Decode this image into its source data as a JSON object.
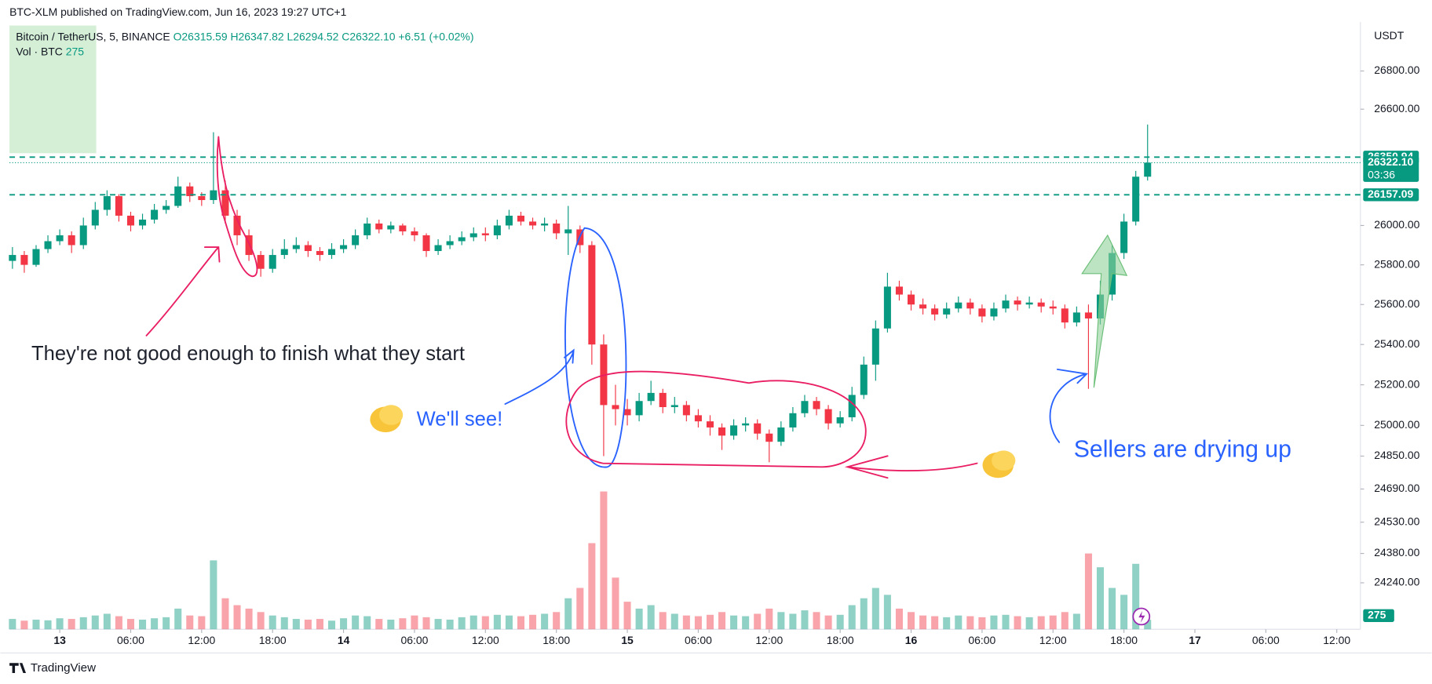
{
  "header": {
    "published": "BTC-XLM published on TradingView.com, Jun 16, 2023 19:27 UTC+1"
  },
  "footer": "TradingView",
  "chart_data": {
    "type": "candlestick",
    "legend": {
      "symbol": "Bitcoin / TetherUS, 5, BINANCE",
      "ohlc": [
        "O26315.59",
        "H26347.82",
        "L26294.52",
        "C26322.10"
      ],
      "change": "+6.51 (+0.02%)"
    },
    "unit": "USDT",
    "up_color": "#089981",
    "down_color": "#f23645",
    "log_scale": true,
    "grid": false,
    "x": [
      "2023-06-12T20:00",
      "2023-06-12T21:00",
      "2023-06-12T22:00",
      "2023-06-12T23:00",
      "2023-06-13T00:00",
      "2023-06-13T01:00",
      "2023-06-13T02:00",
      "2023-06-13T03:00",
      "2023-06-13T04:00",
      "2023-06-13T05:00",
      "2023-06-13T06:00",
      "2023-06-13T07:00",
      "2023-06-13T08:00",
      "2023-06-13T09:00",
      "2023-06-13T10:00",
      "2023-06-13T11:00",
      "2023-06-13T12:00",
      "2023-06-13T13:00",
      "2023-06-13T14:00",
      "2023-06-13T15:00",
      "2023-06-13T16:00",
      "2023-06-13T17:00",
      "2023-06-13T18:00",
      "2023-06-13T19:00",
      "2023-06-13T20:00",
      "2023-06-13T21:00",
      "2023-06-13T22:00",
      "2023-06-13T23:00",
      "2023-06-14T00:00",
      "2023-06-14T01:00",
      "2023-06-14T02:00",
      "2023-06-14T03:00",
      "2023-06-14T04:00",
      "2023-06-14T05:00",
      "2023-06-14T06:00",
      "2023-06-14T07:00",
      "2023-06-14T08:00",
      "2023-06-14T09:00",
      "2023-06-14T10:00",
      "2023-06-14T11:00",
      "2023-06-14T12:00",
      "2023-06-14T13:00",
      "2023-06-14T14:00",
      "2023-06-14T15:00",
      "2023-06-14T16:00",
      "2023-06-14T17:00",
      "2023-06-14T18:00",
      "2023-06-14T19:00",
      "2023-06-14T20:00",
      "2023-06-14T21:00",
      "2023-06-14T22:00",
      "2023-06-14T23:00",
      "2023-06-15T00:00",
      "2023-06-15T01:00",
      "2023-06-15T02:00",
      "2023-06-15T03:00",
      "2023-06-15T04:00",
      "2023-06-15T05:00",
      "2023-06-15T06:00",
      "2023-06-15T07:00",
      "2023-06-15T08:00",
      "2023-06-15T09:00",
      "2023-06-15T10:00",
      "2023-06-15T11:00",
      "2023-06-15T12:00",
      "2023-06-15T13:00",
      "2023-06-15T14:00",
      "2023-06-15T15:00",
      "2023-06-15T16:00",
      "2023-06-15T17:00",
      "2023-06-15T18:00",
      "2023-06-15T19:00",
      "2023-06-15T20:00",
      "2023-06-15T21:00",
      "2023-06-15T22:00",
      "2023-06-15T23:00",
      "2023-06-16T00:00",
      "2023-06-16T01:00",
      "2023-06-16T02:00",
      "2023-06-16T03:00",
      "2023-06-16T04:00",
      "2023-06-16T05:00",
      "2023-06-16T06:00",
      "2023-06-16T07:00",
      "2023-06-16T08:00",
      "2023-06-16T09:00",
      "2023-06-16T10:00",
      "2023-06-16T11:00",
      "2023-06-16T12:00",
      "2023-06-16T13:00",
      "2023-06-16T14:00",
      "2023-06-16T15:00",
      "2023-06-16T16:00",
      "2023-06-16T17:00",
      "2023-06-16T18:00",
      "2023-06-16T19:00",
      "2023-06-16T20:00"
    ],
    "open": [
      25820,
      25850,
      25800,
      25880,
      25920,
      25950,
      25900,
      26000,
      26080,
      26150,
      26050,
      26000,
      26030,
      26080,
      26100,
      26200,
      26150,
      26130,
      26180,
      26050,
      25950,
      25850,
      25780,
      25850,
      25880,
      25900,
      25870,
      25850,
      25880,
      25900,
      25950,
      26010,
      25980,
      26000,
      25970,
      25950,
      25870,
      25900,
      25920,
      25940,
      25960,
      25950,
      26000,
      26050,
      26020,
      26000,
      26010,
      25960,
      25980,
      25900,
      25400,
      25100,
      25080,
      25050,
      25120,
      25160,
      25090,
      25100,
      25050,
      25020,
      24990,
      24950,
      25000,
      25010,
      24960,
      24920,
      24990,
      25060,
      25120,
      25080,
      25010,
      25040,
      25150,
      25300,
      25480,
      25690,
      25650,
      25600,
      25580,
      25550,
      25580,
      25610,
      25580,
      25540,
      25580,
      25620,
      25600,
      25610,
      25590,
      25580,
      25510,
      25560,
      25530,
      25650,
      25860,
      26020,
      26250
    ],
    "high": [
      25890,
      25870,
      25900,
      25950,
      25980,
      25970,
      26040,
      26120,
      26180,
      26160,
      26070,
      26060,
      26110,
      26130,
      26250,
      26220,
      26170,
      26480,
      26230,
      26080,
      25980,
      25870,
      25880,
      25930,
      25940,
      25920,
      25890,
      25910,
      25930,
      25980,
      26040,
      26030,
      26020,
      26010,
      25990,
      25960,
      25930,
      25950,
      25970,
      25990,
      25990,
      26030,
      26080,
      26070,
      26040,
      26040,
      26030,
      26100,
      26000,
      25920,
      25450,
      25200,
      25130,
      25160,
      25220,
      25180,
      25140,
      25120,
      25080,
      25050,
      25010,
      25030,
      25040,
      25030,
      24980,
      25020,
      25090,
      25150,
      25140,
      25100,
      25070,
      25190,
      25340,
      25520,
      25760,
      25720,
      25670,
      25630,
      25600,
      25610,
      25640,
      25630,
      25600,
      25610,
      25650,
      25640,
      25640,
      25630,
      25620,
      25600,
      25590,
      25600,
      25720,
      25900,
      26060,
      26280,
      26520
    ],
    "low": [
      25780,
      25760,
      25790,
      25860,
      25900,
      25860,
      25880,
      25980,
      26050,
      26020,
      25970,
      25980,
      26010,
      26060,
      26090,
      26120,
      26100,
      26110,
      26010,
      25900,
      25820,
      25740,
      25760,
      25830,
      25860,
      25840,
      25820,
      25830,
      25860,
      25880,
      25930,
      25960,
      25960,
      25950,
      25920,
      25840,
      25850,
      25880,
      25900,
      25920,
      25920,
      25930,
      25980,
      26000,
      25980,
      25970,
      25930,
      25850,
      25860,
      25300,
      24850,
      25000,
      25000,
      25020,
      25100,
      25060,
      25060,
      25020,
      24990,
      24950,
      24880,
      24930,
      24970,
      24930,
      24820,
      24900,
      24970,
      25040,
      25050,
      24980,
      24990,
      25020,
      25130,
      25220,
      25460,
      25620,
      25570,
      25550,
      25520,
      25530,
      25560,
      25550,
      25510,
      25520,
      25560,
      25570,
      25580,
      25560,
      25550,
      25480,
      25490,
      25180,
      25500,
      25620,
      25830,
      26000,
      26230
    ],
    "close": [
      25850,
      25800,
      25880,
      25920,
      25950,
      25900,
      26000,
      26080,
      26150,
      26050,
      26000,
      26030,
      26080,
      26100,
      26200,
      26150,
      26130,
      26180,
      26050,
      25950,
      25850,
      25780,
      25850,
      25880,
      25900,
      25870,
      25850,
      25880,
      25900,
      25950,
      26010,
      25980,
      26000,
      25970,
      25950,
      25870,
      25900,
      25920,
      25940,
      25960,
      25950,
      26000,
      26050,
      26020,
      26000,
      26010,
      25960,
      25980,
      25900,
      25400,
      25100,
      25080,
      25050,
      25120,
      25160,
      25090,
      25100,
      25050,
      25020,
      24990,
      24950,
      25000,
      25010,
      24960,
      24920,
      24990,
      25060,
      25120,
      25080,
      25010,
      25040,
      25150,
      25300,
      25480,
      25690,
      25650,
      25600,
      25580,
      25550,
      25580,
      25610,
      25580,
      25540,
      25580,
      25620,
      25600,
      25610,
      25590,
      25580,
      25510,
      25560,
      25530,
      25650,
      25860,
      26020,
      26250,
      26322.1
    ],
    "volume": {
      "name": "Vol · BTC",
      "axis": "y2",
      "values": [
        300,
        250,
        280,
        260,
        320,
        300,
        350,
        400,
        450,
        380,
        300,
        280,
        320,
        350,
        600,
        400,
        380,
        2000,
        900,
        700,
        600,
        500,
        400,
        350,
        300,
        280,
        300,
        250,
        320,
        400,
        380,
        300,
        280,
        320,
        400,
        350,
        300,
        280,
        350,
        400,
        380,
        420,
        400,
        380,
        420,
        450,
        500,
        900,
        1200,
        2500,
        4000,
        1500,
        800,
        600,
        700,
        500,
        450,
        400,
        380,
        420,
        500,
        400,
        380,
        450,
        600,
        500,
        450,
        550,
        500,
        400,
        420,
        700,
        900,
        1200,
        1000,
        600,
        500,
        400,
        380,
        350,
        400,
        380,
        350,
        400,
        420,
        380,
        350,
        380,
        400,
        500,
        450,
        2200,
        1800,
        1200,
        1000,
        1900,
        275
      ]
    },
    "xlim": [
      "2023-06-12T19:45",
      "2023-06-17T14:00"
    ],
    "ylim": [
      24020,
      27040
    ],
    "y2lim": [
      0,
      4500
    ],
    "yticks": [
      {
        "value": 26800,
        "label": "26800.00"
      },
      {
        "value": 26600,
        "label": "26600.00"
      },
      {
        "value": 26000,
        "label": "26000.00"
      },
      {
        "value": 25800,
        "label": "25800.00"
      },
      {
        "value": 25600,
        "label": "25600.00"
      },
      {
        "value": 25400,
        "label": "25400.00"
      },
      {
        "value": 25200,
        "label": "25200.00"
      },
      {
        "value": 25000,
        "label": "25000.00"
      },
      {
        "value": 24850,
        "label": "24850.00"
      },
      {
        "value": 24690,
        "label": "24690.00"
      },
      {
        "value": 24530,
        "label": "24530.00"
      },
      {
        "value": 24380,
        "label": "24380.00"
      },
      {
        "value": 24240,
        "label": "24240.00"
      }
    ],
    "xticks": [
      {
        "value": "2023-06-13T00:00",
        "label": "13"
      },
      {
        "value": "2023-06-13T06:00",
        "label": "06:00"
      },
      {
        "value": "2023-06-13T12:00",
        "label": "12:00"
      },
      {
        "value": "2023-06-13T18:00",
        "label": "18:00"
      },
      {
        "value": "2023-06-14T00:00",
        "label": "14"
      },
      {
        "value": "2023-06-14T06:00",
        "label": "06:00"
      },
      {
        "value": "2023-06-14T12:00",
        "label": "12:00"
      },
      {
        "value": "2023-06-14T18:00",
        "label": "18:00"
      },
      {
        "value": "2023-06-15T00:00",
        "label": "15"
      },
      {
        "value": "2023-06-15T06:00",
        "label": "06:00"
      },
      {
        "value": "2023-06-15T12:00",
        "label": "12:00"
      },
      {
        "value": "2023-06-15T18:00",
        "label": "18:00"
      },
      {
        "value": "2023-06-16T00:00",
        "label": "16"
      },
      {
        "value": "2023-06-16T06:00",
        "label": "06:00"
      },
      {
        "value": "2023-06-16T12:00",
        "label": "12:00"
      },
      {
        "value": "2023-06-16T18:00",
        "label": "18:00"
      },
      {
        "value": "2023-06-17T00:00",
        "label": "17"
      },
      {
        "value": "2023-06-17T06:00",
        "label": "06:00"
      },
      {
        "value": "2023-06-17T12:00",
        "label": "12:00"
      }
    ],
    "levels": [
      26350.94,
      26157.09
    ],
    "last_price": {
      "value": 26322.1,
      "label": "26322.10"
    },
    "countdown": "03:36",
    "annotations": [
      "They're not good enough to finish what they start",
      "We'll see!",
      "Sellers are drying up"
    ]
  }
}
